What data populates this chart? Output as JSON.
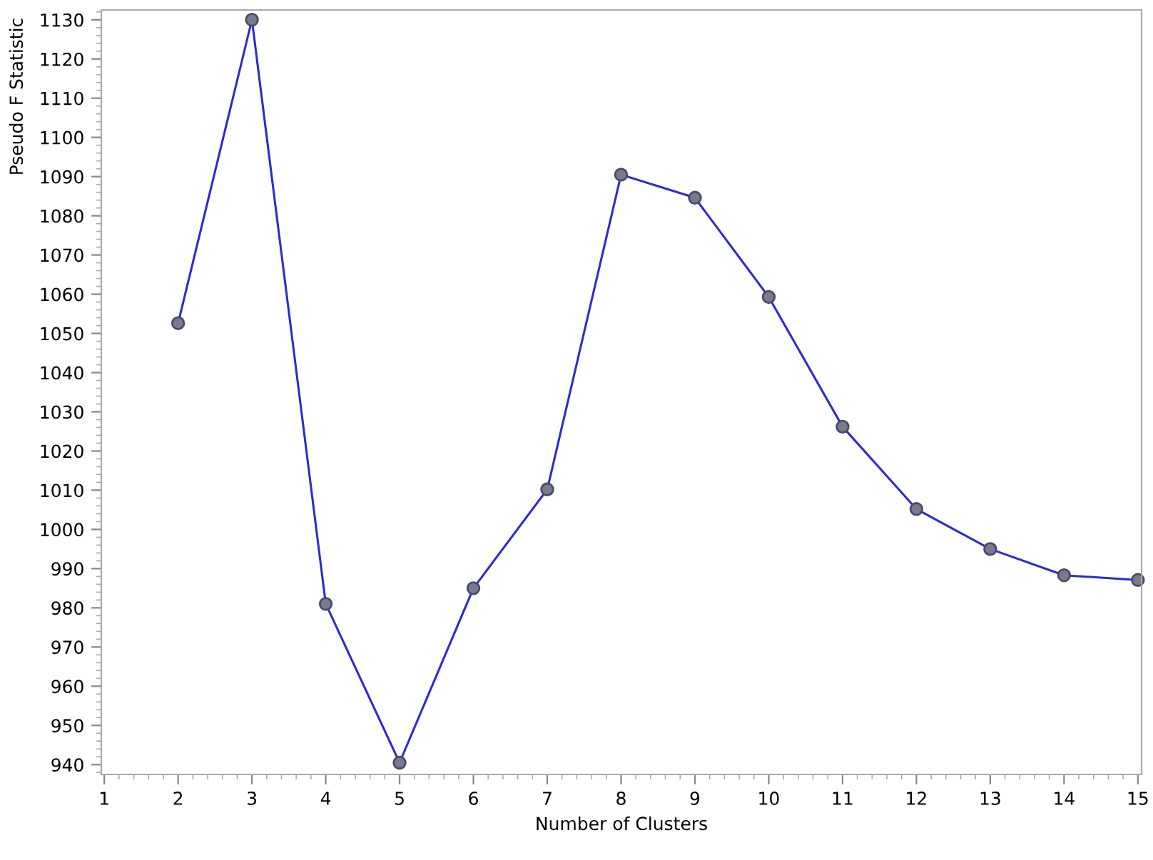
{
  "chart_data": {
    "type": "line",
    "xlabel": "Number of Clusters",
    "ylabel": "Pseudo F Statistic",
    "x": [
      2,
      3,
      4,
      5,
      6,
      7,
      8,
      9,
      10,
      11,
      12,
      13,
      14,
      15
    ],
    "series": [
      {
        "color": "#2b2bd6",
        "values": [
          1052.6,
          1130,
          981,
          940.5,
          985,
          1010.2,
          1090.5,
          1084.6,
          1059.3,
          1026.2,
          1005.2,
          995,
          988.3,
          987.1
        ]
      }
    ],
    "xlim": [
      0.96,
      15.05
    ],
    "xticks": [
      1,
      2,
      3,
      4,
      5,
      6,
      7,
      8,
      9,
      10,
      11,
      12,
      13,
      14,
      15
    ],
    "ylim": [
      937.5,
      1132.5
    ],
    "yticks": [
      940,
      950,
      960,
      970,
      980,
      990,
      1000,
      1010,
      1020,
      1030,
      1040,
      1050,
      1060,
      1070,
      1080,
      1090,
      1100,
      1110,
      1120,
      1130
    ],
    "marker": "circle",
    "line_style": "solid",
    "grid": false,
    "legend": false
  }
}
